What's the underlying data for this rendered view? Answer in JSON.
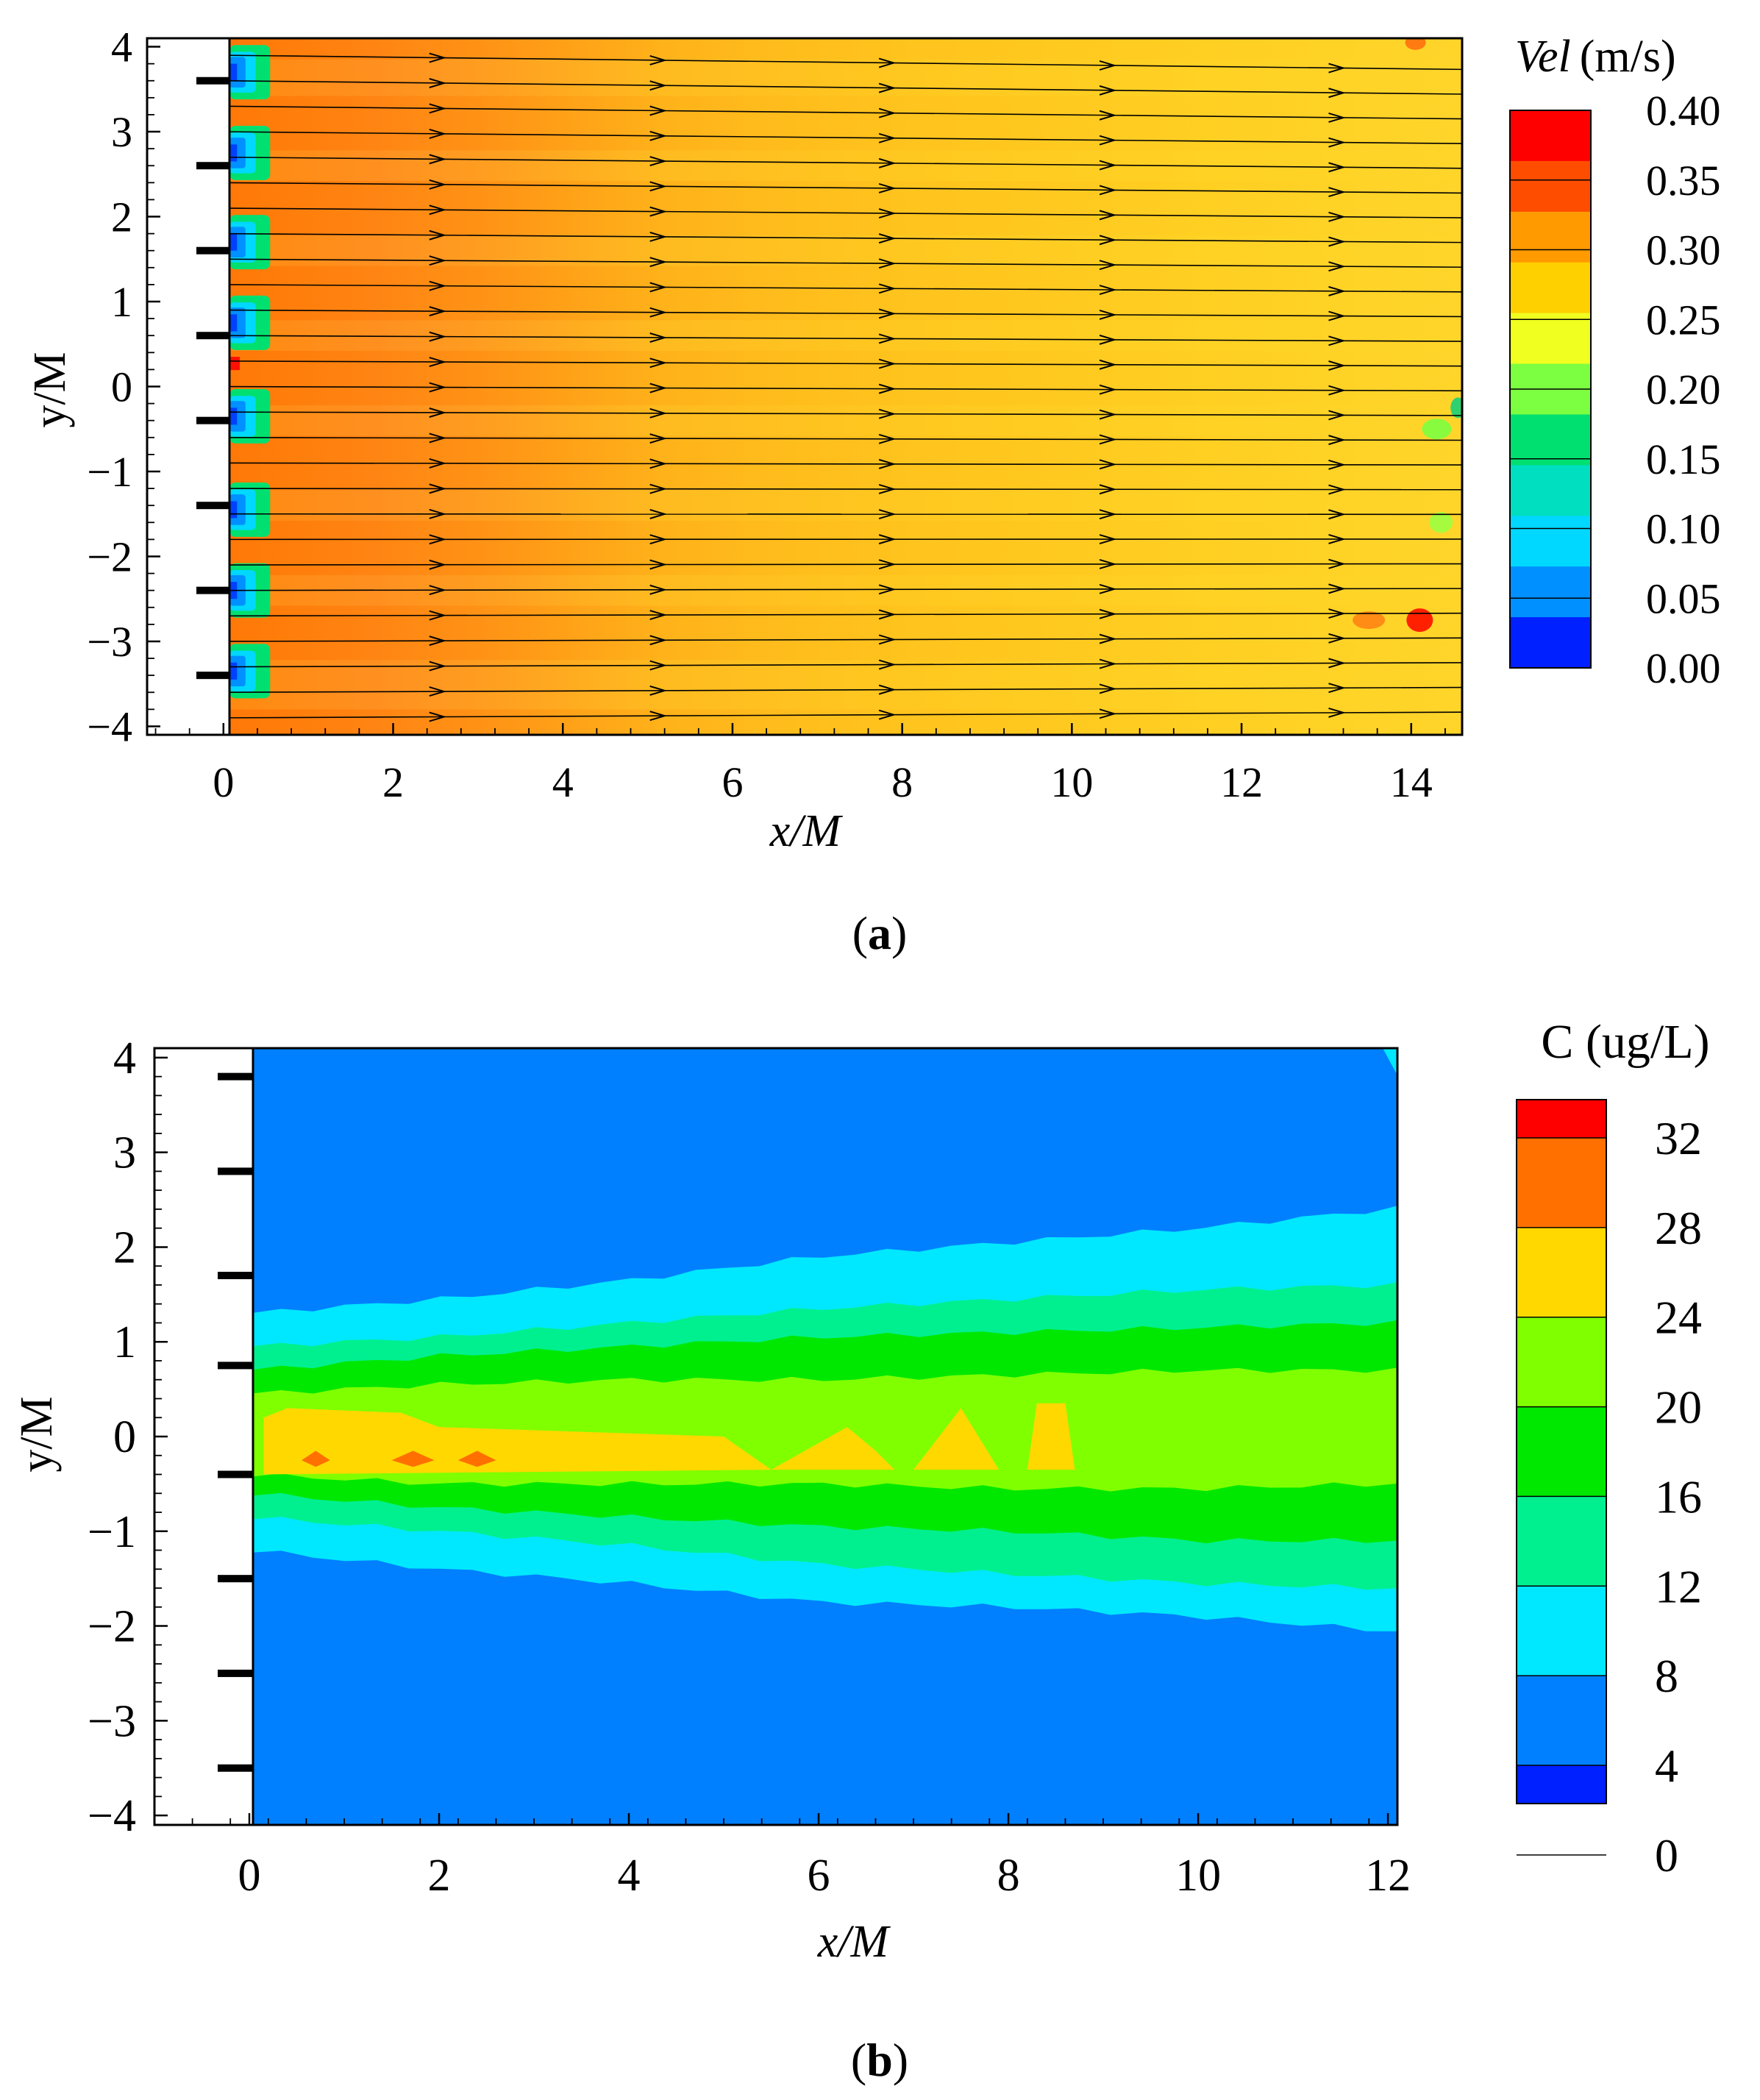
{
  "chart_data": [
    {
      "type": "heatmap",
      "panel_label": "a",
      "xlabel": "x/M",
      "ylabel": "y/M",
      "xlim": [
        -0.9,
        14.6
      ],
      "ylim": [
        -4.1,
        4.1
      ],
      "xticks": [
        "0",
        "2",
        "4",
        "6",
        "8",
        "10",
        "12",
        "14"
      ],
      "yticks": [
        "4",
        "3",
        "2",
        "1",
        "0",
        "-1",
        "-2",
        "-3",
        "-4"
      ],
      "colorbar": {
        "title_italic": "Vel",
        "title_unit": "(m/s)",
        "levels": [
          "0.40",
          "0.35",
          "0.30",
          "0.25",
          "0.20",
          "0.15",
          "0.10",
          "0.05",
          "0.00"
        ],
        "colors": [
          "#ff0000",
          "#ff4d00",
          "#ff9a00",
          "#ffd000",
          "#f0ff20",
          "#7cff40",
          "#00e070",
          "#00e0c0",
          "#00d8ff",
          "#0090ff",
          "#0020ff"
        ]
      },
      "field": {
        "near_grid_velocity": 0.33,
        "far_field_velocity": 0.29,
        "wake_velocity": 0.05
      },
      "grid_bars_y": [
        3.6,
        2.6,
        1.6,
        0.6,
        -0.4,
        -1.4,
        -2.4,
        -3.4
      ],
      "streamlines_y": [
        3.9,
        3.6,
        3.3,
        3.0,
        2.7,
        2.4,
        2.1,
        1.8,
        1.5,
        1.2,
        0.9,
        0.6,
        0.3,
        0.0,
        -0.3,
        -0.6,
        -0.9,
        -1.2,
        -1.5,
        -1.8,
        -2.1,
        -2.4,
        -2.7,
        -3.0,
        -3.3,
        -3.6,
        -3.9
      ],
      "arrow_x": [
        2.6,
        5.2,
        7.9,
        10.5,
        13.2
      ]
    },
    {
      "type": "heatmap",
      "panel_label": "b",
      "xlabel": "x/M",
      "ylabel": "y/M",
      "xlim": [
        -1.0,
        12.1
      ],
      "ylim": [
        -4.1,
        4.1
      ],
      "xticks": [
        "0",
        "2",
        "4",
        "6",
        "8",
        "10",
        "12"
      ],
      "yticks": [
        "4",
        "3",
        "2",
        "1",
        "0",
        "-1",
        "-2",
        "-3",
        "-4"
      ],
      "colorbar": {
        "title": "C (ug/L)",
        "levels": [
          "32",
          "28",
          "24",
          "20",
          "16",
          "12",
          "8",
          "4",
          "0"
        ],
        "colors": [
          "#ff0000",
          "#ff7000",
          "#ffd800",
          "#80ff00",
          "#00e800",
          "#00f090",
          "#00e8ff",
          "#0080ff",
          "#0020ff"
        ]
      },
      "plume": {
        "x": [
          0,
          2,
          4,
          6,
          8,
          10,
          12
        ],
        "c4_upper": [
          1.3,
          1.45,
          1.65,
          1.9,
          2.05,
          2.2,
          2.4
        ],
        "c4_lower": [
          -1.2,
          -1.4,
          -1.55,
          -1.75,
          -1.8,
          -1.9,
          -2.05
        ],
        "c8_upper": [
          0.95,
          1.05,
          1.2,
          1.35,
          1.45,
          1.55,
          1.6
        ],
        "c8_lower": [
          -0.85,
          -1.0,
          -1.15,
          -1.35,
          -1.45,
          -1.55,
          -1.6
        ],
        "c12_upper": [
          0.7,
          0.85,
          0.95,
          1.05,
          1.1,
          1.15,
          1.2
        ],
        "c12_lower": [
          -0.6,
          -0.75,
          -0.85,
          -0.95,
          -1.0,
          -1.1,
          -1.1
        ],
        "c16_upper": [
          0.45,
          0.55,
          0.6,
          0.6,
          0.65,
          0.7,
          0.7
        ],
        "c16_lower": [
          -0.4,
          -0.5,
          -0.5,
          -0.5,
          -0.55,
          -0.55,
          -0.5
        ]
      },
      "grid_bars_y": [
        3.8,
        2.8,
        1.7,
        0.75,
        -0.4,
        -1.5,
        -2.5,
        -3.5
      ]
    }
  ]
}
